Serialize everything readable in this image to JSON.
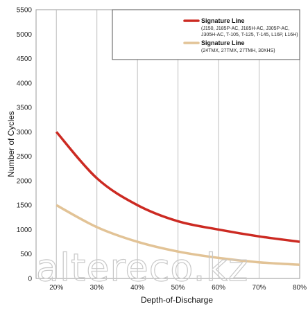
{
  "chart_data": {
    "type": "line",
    "xlabel": "Depth-of-Discharge",
    "ylabel": "Number of Cycles",
    "x_categories": [
      "20%",
      "30%",
      "40%",
      "50%",
      "60%",
      "70%",
      "80%"
    ],
    "x": [
      20,
      30,
      40,
      50,
      60,
      70,
      80
    ],
    "ylim": [
      0,
      5500
    ],
    "yticks": [
      "0",
      "500",
      "1000",
      "1500",
      "2000",
      "2500",
      "3000",
      "3500",
      "4000",
      "4500",
      "5000",
      "5500"
    ],
    "xlim": [
      15,
      80
    ],
    "grid": "vertical",
    "legend_position": "top-right",
    "series": [
      {
        "name": "Signature Line",
        "description": "(J150, J185P-AC, J185H-AC, J305P-AC, J305H-AC, T-105, T-125, T-145, L16P, L16H)",
        "color": "#cc2a22",
        "values": [
          3000,
          2050,
          1500,
          1170,
          1000,
          860,
          750
        ]
      },
      {
        "name": "Signature Line",
        "description": "(24TMX, 27TMX, 27TMH, 30XHS)",
        "color": "#e2c396",
        "values": [
          1500,
          1050,
          750,
          550,
          420,
          330,
          280
        ]
      }
    ]
  },
  "watermark": "altereco.kz",
  "colors": {
    "grid": "#bdbdbd",
    "axis": "#9a9a9a"
  }
}
